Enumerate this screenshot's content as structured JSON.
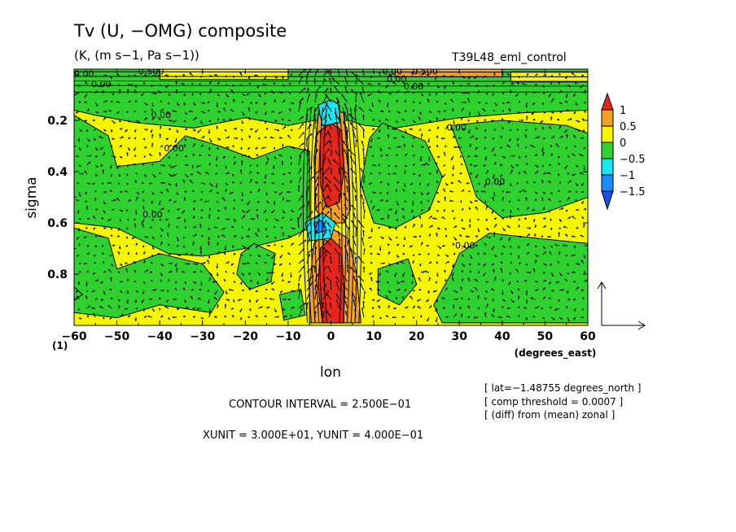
{
  "title": "Tv (U, −OMG) composite",
  "units": "(K, (m s−1, Pa s−1))",
  "run_label": "T39L48_eml_control",
  "index_label": "(1)",
  "contour_interval": "CONTOUR INTERVAL = 2.500E−01",
  "unit_scale": "XUNIT = 3.000E+01, YUNIT = 4.000E−01",
  "info_lines": [
    "[ lat=−1.48755 degrees_north ]",
    "[ comp threshold = 0.0007 ]",
    "[ (diff) from (mean) zonal ]"
  ],
  "chart_data": {
    "type": "heatmap",
    "title": "Tv (U, −OMG) composite",
    "xlabel": "lon",
    "xunit_label": "(degrees_east)",
    "ylabel": "sigma",
    "xlim": [
      -60,
      60
    ],
    "ylim": [
      0.0,
      1.0
    ],
    "y_inverted": true,
    "x_ticks": [
      -60,
      -50,
      -40,
      -30,
      -20,
      -10,
      0,
      10,
      20,
      30,
      40,
      50,
      60
    ],
    "x_tick_labels": [
      "−60",
      "−50",
      "−40",
      "−30",
      "−20",
      "−10",
      "0",
      "10",
      "20",
      "30",
      "40",
      "50",
      "60"
    ],
    "y_ticks": [
      0.2,
      0.4,
      0.6,
      0.8
    ],
    "y_tick_labels": [
      "0.2",
      "0.4",
      "0.6",
      "0.8"
    ],
    "colorbar": {
      "levels": [
        1,
        0.5,
        0,
        -0.5,
        -1,
        -1.5
      ],
      "labels": [
        "1",
        "0.5",
        "0",
        "−0.5",
        "−1",
        "−1.5"
      ],
      "colors": [
        "#e8261c",
        "#f5a01e",
        "#f5f500",
        "#2ed12e",
        "#18e6f0",
        "#1a8cff",
        "#1450e6"
      ]
    },
    "contour_labels": [
      {
        "text": "0.00",
        "x": -60,
        "y": 0.03
      },
      {
        "text": "0.500",
        "x": -45,
        "y": 0.02
      },
      {
        "text": "0.00",
        "x": -56,
        "y": 0.07
      },
      {
        "text": "0.00",
        "x": -42,
        "y": 0.19
      },
      {
        "text": "0.00",
        "x": -39,
        "y": 0.32
      },
      {
        "text": "0.00",
        "x": -44,
        "y": 0.58
      },
      {
        "text": "0.00",
        "x": 13,
        "y": 0.05
      },
      {
        "text": "0.00",
        "x": 12,
        "y": 0.02
      },
      {
        "text": "0.00",
        "x": 17,
        "y": 0.08
      },
      {
        "text": "0.500",
        "x": 19,
        "y": 0.02
      },
      {
        "text": "0.00",
        "x": 27,
        "y": 0.24
      },
      {
        "text": "0.00",
        "x": 36,
        "y": 0.45
      },
      {
        "text": "0.00",
        "x": 29,
        "y": 0.7
      }
    ],
    "vector_scale": {
      "x_unit": 30.0,
      "y_unit": 0.4
    }
  }
}
